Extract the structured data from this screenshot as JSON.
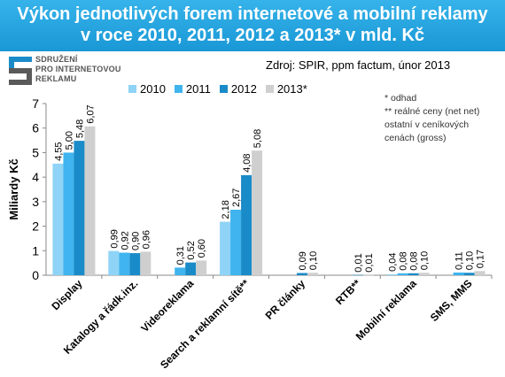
{
  "header": {
    "line1": "Výkon jednotlivých forem internetové a mobilní reklamy",
    "line2": "v roce 2010, 2011, 2012 a 2013* v mld. Kč"
  },
  "logo": {
    "line1": "SDRUŽENÍ",
    "line2": "PRO INTERNETOVOU",
    "line3": "REKLAMU"
  },
  "source": "Zdroj: SPIR, ppm factum, únor 2013",
  "notes": {
    "line1": "* odhad",
    "line2": "** reálné ceny (net net)",
    "line3": "ostatní v ceníkových",
    "line4": "cenách (gross)"
  },
  "colors": {
    "header_bg": "#1a98d6",
    "s2010": "#8fd3f6",
    "s2011": "#3fb4ef",
    "s2012": "#1a8bc9",
    "s2013": "#cfcfcf"
  },
  "chart_data": {
    "type": "bar",
    "ylabel": "Miliardy Kč",
    "ylim": [
      0,
      7
    ],
    "yticks": [
      "0",
      "1",
      "2",
      "3",
      "4",
      "5",
      "6",
      "7"
    ],
    "categories": [
      "Display",
      "Katalogy a řádk.inz.",
      "Videoreklama",
      "Search a reklamní sítě**",
      "PR články",
      "RTB**",
      "Mobilní reklama",
      "SMS, MMS"
    ],
    "series": [
      {
        "name": "2010",
        "values": [
          4.55,
          0.99,
          null,
          2.18,
          null,
          null,
          0.04,
          null
        ],
        "labels": [
          "4,55",
          "0,99",
          "",
          "2,18",
          "",
          "",
          "0,04",
          ""
        ]
      },
      {
        "name": "2011",
        "values": [
          5.0,
          0.92,
          0.31,
          2.67,
          null,
          null,
          0.08,
          0.11
        ],
        "labels": [
          "5,00",
          "0,92",
          "0,31",
          "2,67",
          "",
          "",
          "0,08",
          "0,11"
        ]
      },
      {
        "name": "2012",
        "values": [
          5.48,
          0.9,
          0.52,
          4.08,
          0.09,
          0.01,
          0.08,
          0.1
        ],
        "labels": [
          "5,48",
          "0,90",
          "0,52",
          "4,08",
          "0,09",
          "0,01",
          "0,08",
          "0,10"
        ]
      },
      {
        "name": "2013*",
        "values": [
          6.07,
          0.96,
          0.6,
          5.08,
          0.1,
          0.01,
          0.1,
          0.17
        ],
        "labels": [
          "6,07",
          "0,96",
          "0,60",
          "5,08",
          "0,10",
          "0,01",
          "0,10",
          "0,17"
        ]
      }
    ],
    "grid": false,
    "legend": "top"
  }
}
